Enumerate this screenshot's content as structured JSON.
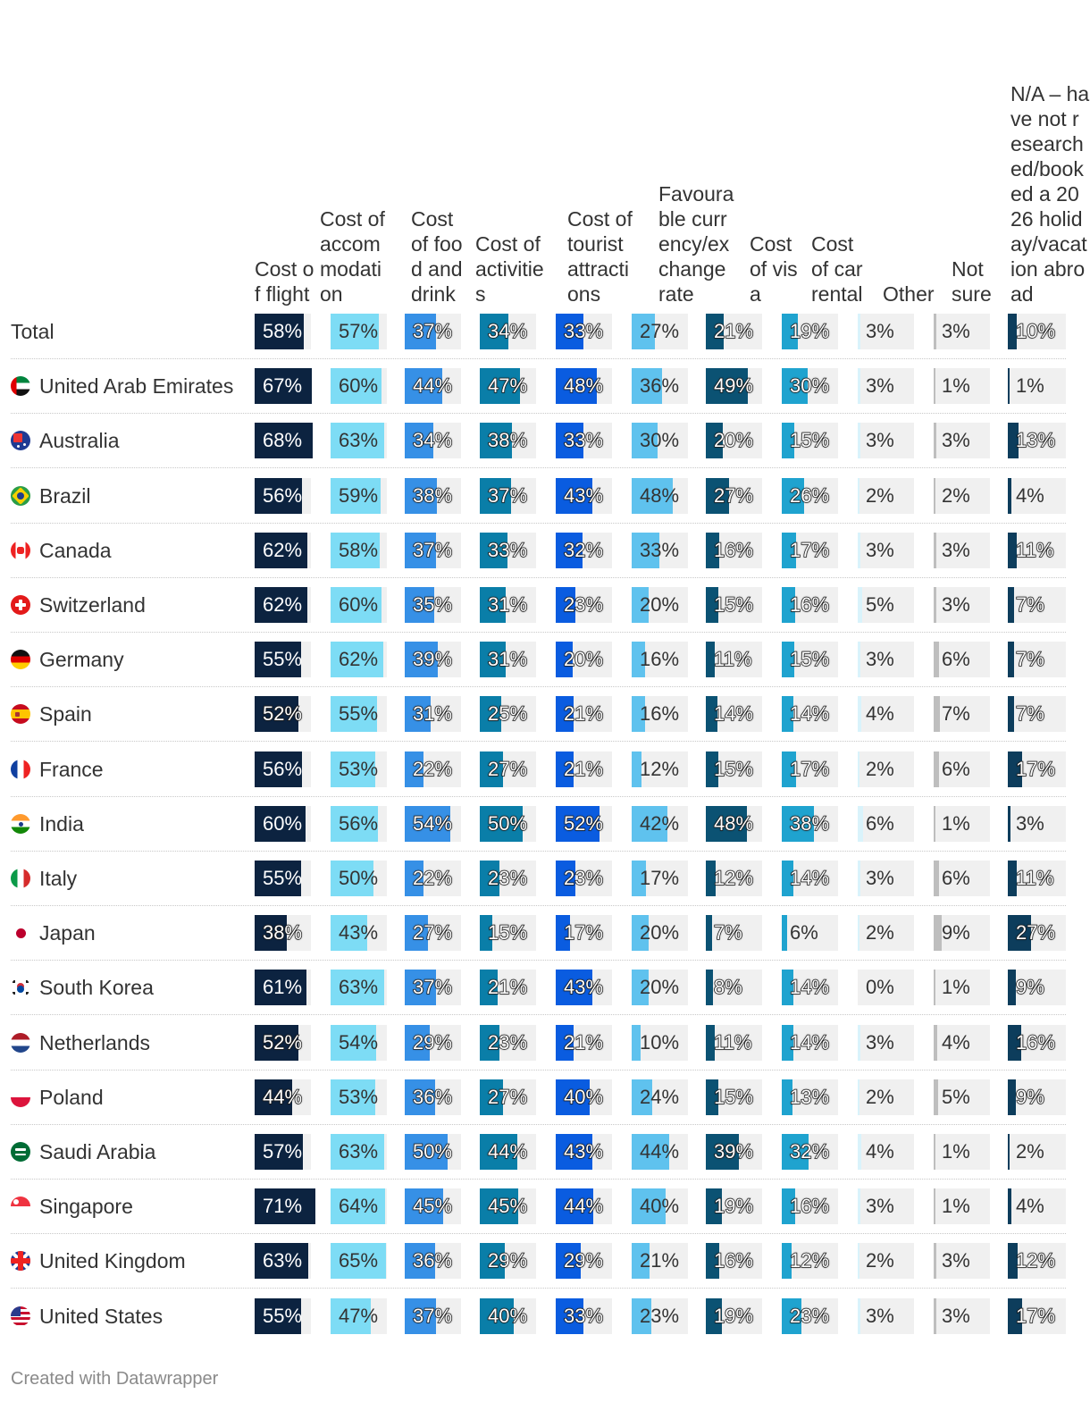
{
  "chart_data": {
    "type": "table",
    "columns": [
      {
        "label": "Cost of flight",
        "color": "#0c2340"
      },
      {
        "label": "Cost of accommodation",
        "color": "#7ddcf5"
      },
      {
        "label": "Cost of food and drink",
        "color": "#3690e6"
      },
      {
        "label": "Cost of activities",
        "color": "#0a7ea8"
      },
      {
        "label": "Cost of tourist attractions",
        "color": "#0a5ce0"
      },
      {
        "label": "Favourable currency/exchange rate",
        "color": "#5fc2ee"
      },
      {
        "label": "Cost of visa",
        "color": "#0b5273"
      },
      {
        "label": "Cost of car rental",
        "color": "#1fa3cf"
      },
      {
        "label": "Other",
        "color": "#d9f3fb"
      },
      {
        "label": "Not sure",
        "color": "#bebebe"
      },
      {
        "label": "N/A – have not researched/booked a 2026 holiday/vacation abroad",
        "color": "#0d3d5c"
      }
    ],
    "rows": [
      {
        "country": "Total",
        "flag": "",
        "values": [
          58,
          57,
          37,
          34,
          33,
          27,
          21,
          19,
          3,
          3,
          10
        ]
      },
      {
        "country": "United Arab Emirates",
        "flag": "ae",
        "values": [
          67,
          60,
          44,
          47,
          48,
          36,
          49,
          30,
          3,
          1,
          1
        ]
      },
      {
        "country": "Australia",
        "flag": "au",
        "values": [
          68,
          63,
          34,
          38,
          33,
          30,
          20,
          15,
          3,
          3,
          13
        ]
      },
      {
        "country": "Brazil",
        "flag": "br",
        "values": [
          56,
          59,
          38,
          37,
          43,
          48,
          27,
          26,
          2,
          2,
          4
        ]
      },
      {
        "country": "Canada",
        "flag": "ca",
        "values": [
          62,
          58,
          37,
          33,
          32,
          33,
          16,
          17,
          3,
          3,
          11
        ]
      },
      {
        "country": "Switzerland",
        "flag": "ch",
        "values": [
          62,
          60,
          35,
          31,
          23,
          20,
          15,
          16,
          5,
          3,
          7
        ]
      },
      {
        "country": "Germany",
        "flag": "de",
        "values": [
          55,
          62,
          39,
          31,
          20,
          16,
          11,
          15,
          3,
          6,
          7
        ]
      },
      {
        "country": "Spain",
        "flag": "es",
        "values": [
          52,
          55,
          31,
          25,
          21,
          16,
          14,
          14,
          4,
          7,
          7
        ]
      },
      {
        "country": "France",
        "flag": "fr",
        "values": [
          56,
          53,
          22,
          27,
          21,
          12,
          15,
          17,
          2,
          6,
          17
        ]
      },
      {
        "country": "India",
        "flag": "in",
        "values": [
          60,
          56,
          54,
          50,
          52,
          42,
          48,
          38,
          6,
          1,
          3
        ]
      },
      {
        "country": "Italy",
        "flag": "it",
        "values": [
          55,
          50,
          22,
          23,
          23,
          17,
          12,
          14,
          3,
          6,
          11
        ]
      },
      {
        "country": "Japan",
        "flag": "jp",
        "values": [
          38,
          43,
          27,
          15,
          17,
          20,
          7,
          6,
          2,
          9,
          27
        ]
      },
      {
        "country": "South Korea",
        "flag": "kr",
        "values": [
          61,
          63,
          37,
          21,
          43,
          20,
          8,
          14,
          0,
          1,
          9
        ]
      },
      {
        "country": "Netherlands",
        "flag": "nl",
        "values": [
          52,
          54,
          29,
          23,
          21,
          10,
          11,
          14,
          3,
          4,
          16
        ]
      },
      {
        "country": "Poland",
        "flag": "pl",
        "values": [
          44,
          53,
          36,
          27,
          40,
          24,
          15,
          13,
          2,
          5,
          9
        ]
      },
      {
        "country": "Saudi Arabia",
        "flag": "sa",
        "values": [
          57,
          63,
          50,
          44,
          43,
          44,
          39,
          32,
          4,
          1,
          2
        ]
      },
      {
        "country": "Singapore",
        "flag": "sg",
        "values": [
          71,
          64,
          45,
          45,
          44,
          40,
          19,
          16,
          3,
          1,
          4
        ]
      },
      {
        "country": "United Kingdom",
        "flag": "gb",
        "values": [
          63,
          65,
          36,
          29,
          29,
          21,
          16,
          12,
          2,
          3,
          12
        ]
      },
      {
        "country": "United States",
        "flag": "us",
        "values": [
          55,
          47,
          37,
          40,
          33,
          23,
          19,
          23,
          3,
          3,
          17
        ]
      }
    ],
    "max_value": 71,
    "unit": "%"
  },
  "footer": "Created with Datawrapper"
}
